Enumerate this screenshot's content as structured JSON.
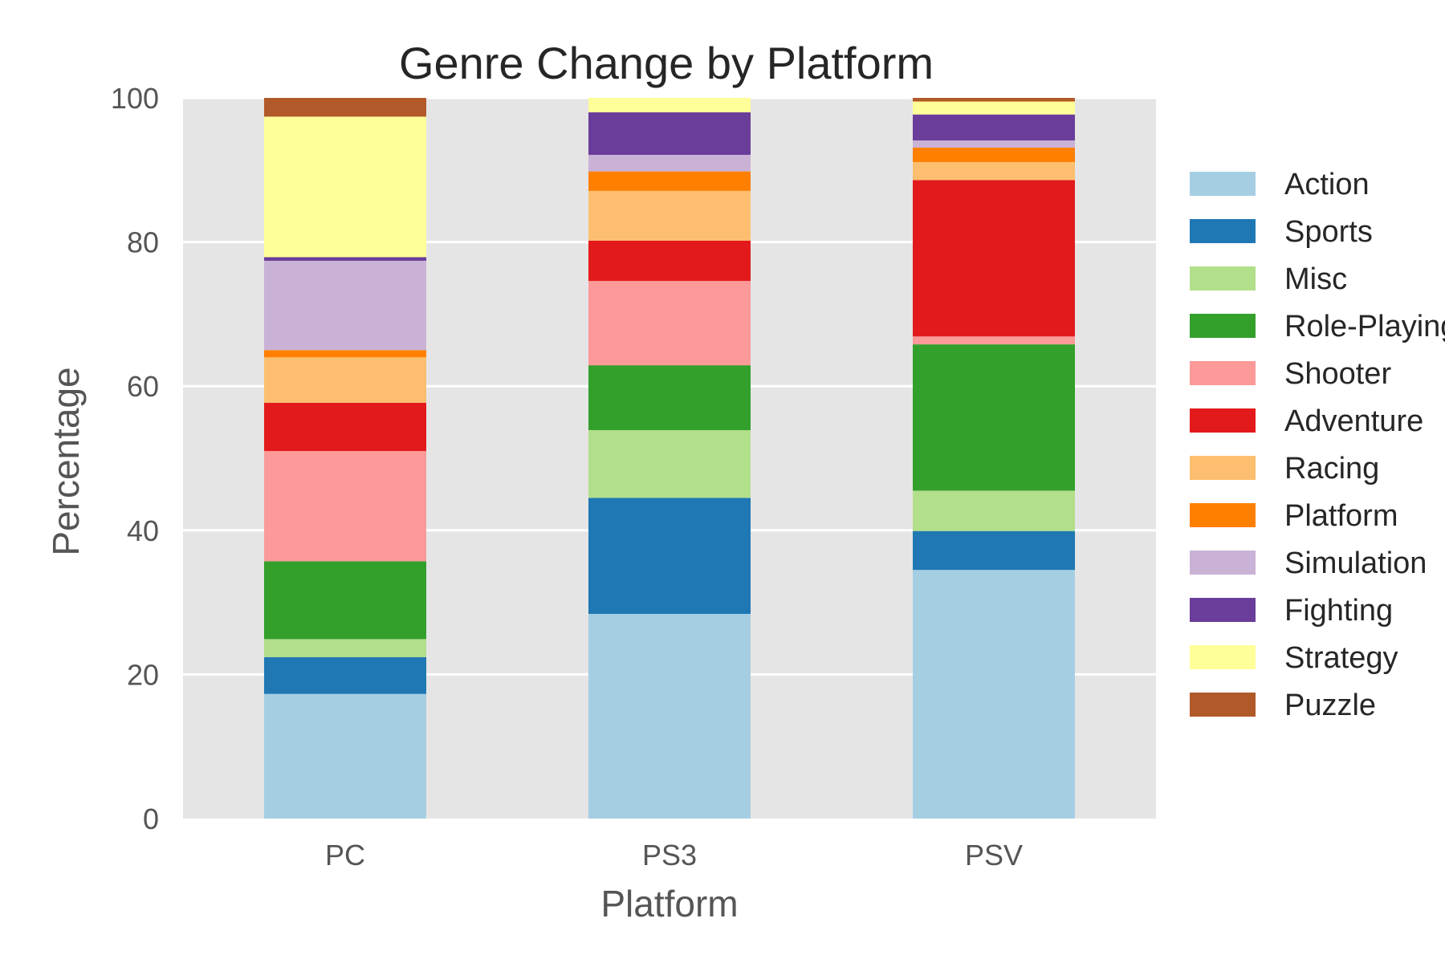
{
  "chart_data": {
    "type": "bar",
    "stacked": true,
    "title": "Genre Change by Platform",
    "xlabel": "Platform",
    "ylabel": "Percentage",
    "ylim": [
      0,
      100
    ],
    "yticks": [
      0,
      20,
      40,
      60,
      80,
      100
    ],
    "grid": true,
    "legend_position": "right",
    "categories": [
      "PC",
      "PS3",
      "PSV"
    ],
    "series": [
      {
        "name": "Action",
        "color": "#a6cee3",
        "values": [
          17.3,
          28.4,
          34.5
        ]
      },
      {
        "name": "Sports",
        "color": "#1f78b4",
        "values": [
          5.1,
          16.1,
          5.4
        ]
      },
      {
        "name": "Misc",
        "color": "#b2df8a",
        "values": [
          2.5,
          9.4,
          5.6
        ]
      },
      {
        "name": "Role-Playing",
        "color": "#33a02c",
        "values": [
          10.8,
          9.0,
          20.3
        ]
      },
      {
        "name": "Shooter",
        "color": "#fb9a99",
        "values": [
          15.3,
          11.7,
          1.1
        ]
      },
      {
        "name": "Adventure",
        "color": "#e31a1c",
        "values": [
          6.7,
          5.6,
          21.7
        ]
      },
      {
        "name": "Racing",
        "color": "#fdbf6f",
        "values": [
          6.3,
          6.9,
          2.5
        ]
      },
      {
        "name": "Platform",
        "color": "#ff7f00",
        "values": [
          1.0,
          2.7,
          2.0
        ]
      },
      {
        "name": "Simulation",
        "color": "#cab2d6",
        "values": [
          12.4,
          2.3,
          1.0
        ]
      },
      {
        "name": "Fighting",
        "color": "#6a3d9a",
        "values": [
          0.5,
          5.9,
          3.6
        ]
      },
      {
        "name": "Strategy",
        "color": "#ffff99",
        "values": [
          19.5,
          2.0,
          1.8
        ]
      },
      {
        "name": "Puzzle",
        "color": "#b15928",
        "values": [
          2.6,
          0.0,
          0.5
        ]
      }
    ]
  }
}
